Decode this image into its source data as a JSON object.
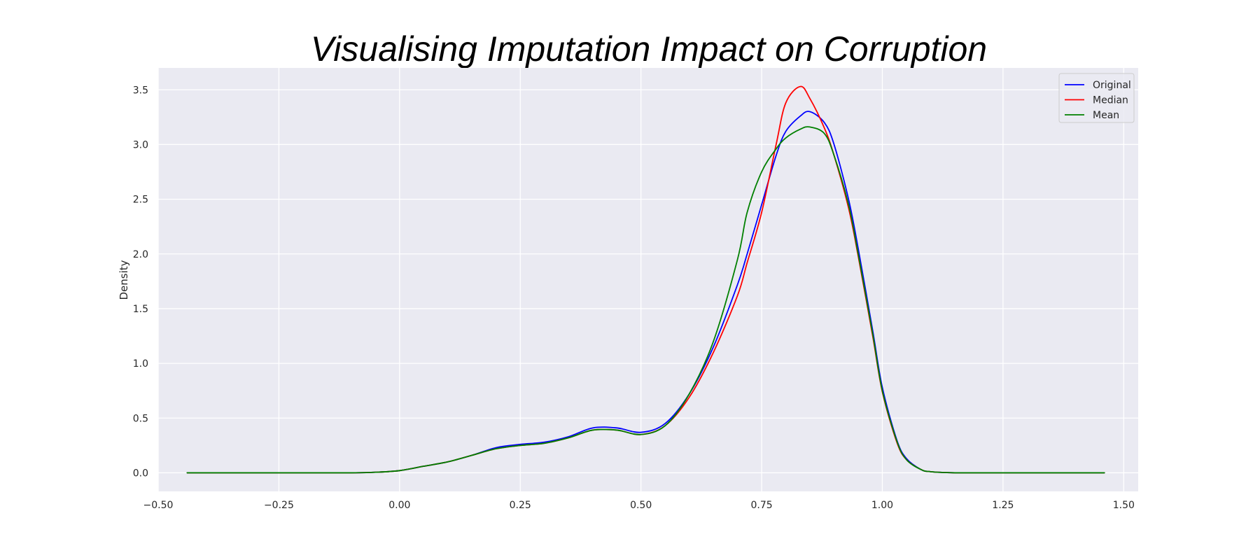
{
  "chart_data": {
    "type": "line",
    "title": "Visualising Imputation Impact on Corruption",
    "xlabel": "",
    "ylabel": "Density",
    "xlim": [
      -0.5,
      1.53
    ],
    "ylim": [
      -0.17,
      3.7
    ],
    "xticks": [
      -0.5,
      -0.25,
      0.0,
      0.25,
      0.5,
      0.75,
      1.0,
      1.25,
      1.5
    ],
    "xtick_labels": [
      "−0.50",
      "−0.25",
      "0.00",
      "0.25",
      "0.50",
      "0.75",
      "1.00",
      "1.25",
      "1.50"
    ],
    "yticks": [
      0.0,
      0.5,
      1.0,
      1.5,
      2.0,
      2.5,
      3.0,
      3.5
    ],
    "ytick_labels": [
      "0.0",
      "0.5",
      "1.0",
      "1.5",
      "2.0",
      "2.5",
      "3.0",
      "3.5"
    ],
    "grid": true,
    "legend_position": "top-right",
    "x": [
      -0.44,
      -0.3,
      -0.2,
      -0.1,
      -0.05,
      0.0,
      0.05,
      0.1,
      0.15,
      0.2,
      0.25,
      0.3,
      0.35,
      0.4,
      0.45,
      0.5,
      0.55,
      0.6,
      0.65,
      0.7,
      0.72,
      0.75,
      0.78,
      0.8,
      0.83,
      0.85,
      0.88,
      0.9,
      0.93,
      0.95,
      0.98,
      1.0,
      1.03,
      1.05,
      1.08,
      1.1,
      1.15,
      1.2,
      1.3,
      1.46
    ],
    "series": [
      {
        "name": "Original",
        "color": "#0000ff",
        "values": [
          0.0,
          0.0,
          0.0,
          0.0,
          0.005,
          0.02,
          0.06,
          0.1,
          0.16,
          0.23,
          0.26,
          0.28,
          0.33,
          0.41,
          0.41,
          0.37,
          0.45,
          0.72,
          1.15,
          1.72,
          2.0,
          2.45,
          2.9,
          3.12,
          3.26,
          3.3,
          3.2,
          3.0,
          2.5,
          2.05,
          1.3,
          0.78,
          0.3,
          0.13,
          0.03,
          0.01,
          0.0,
          0.0,
          0.0,
          0.0
        ]
      },
      {
        "name": "Median",
        "color": "#ff0000",
        "values": [
          0.0,
          0.0,
          0.0,
          0.0,
          0.005,
          0.02,
          0.06,
          0.1,
          0.16,
          0.22,
          0.25,
          0.27,
          0.32,
          0.39,
          0.39,
          0.35,
          0.43,
          0.69,
          1.1,
          1.62,
          1.92,
          2.38,
          3.0,
          3.38,
          3.53,
          3.42,
          3.15,
          2.9,
          2.42,
          1.98,
          1.25,
          0.74,
          0.28,
          0.12,
          0.03,
          0.01,
          0.0,
          0.0,
          0.0,
          0.0
        ]
      },
      {
        "name": "Mean",
        "color": "#008000",
        "values": [
          0.0,
          0.0,
          0.0,
          0.0,
          0.005,
          0.02,
          0.06,
          0.1,
          0.16,
          0.22,
          0.25,
          0.27,
          0.32,
          0.39,
          0.39,
          0.35,
          0.43,
          0.72,
          1.2,
          1.95,
          2.38,
          2.75,
          2.96,
          3.06,
          3.14,
          3.16,
          3.1,
          2.9,
          2.45,
          2.0,
          1.27,
          0.75,
          0.29,
          0.12,
          0.03,
          0.01,
          0.0,
          0.0,
          0.0,
          0.0
        ]
      }
    ]
  }
}
